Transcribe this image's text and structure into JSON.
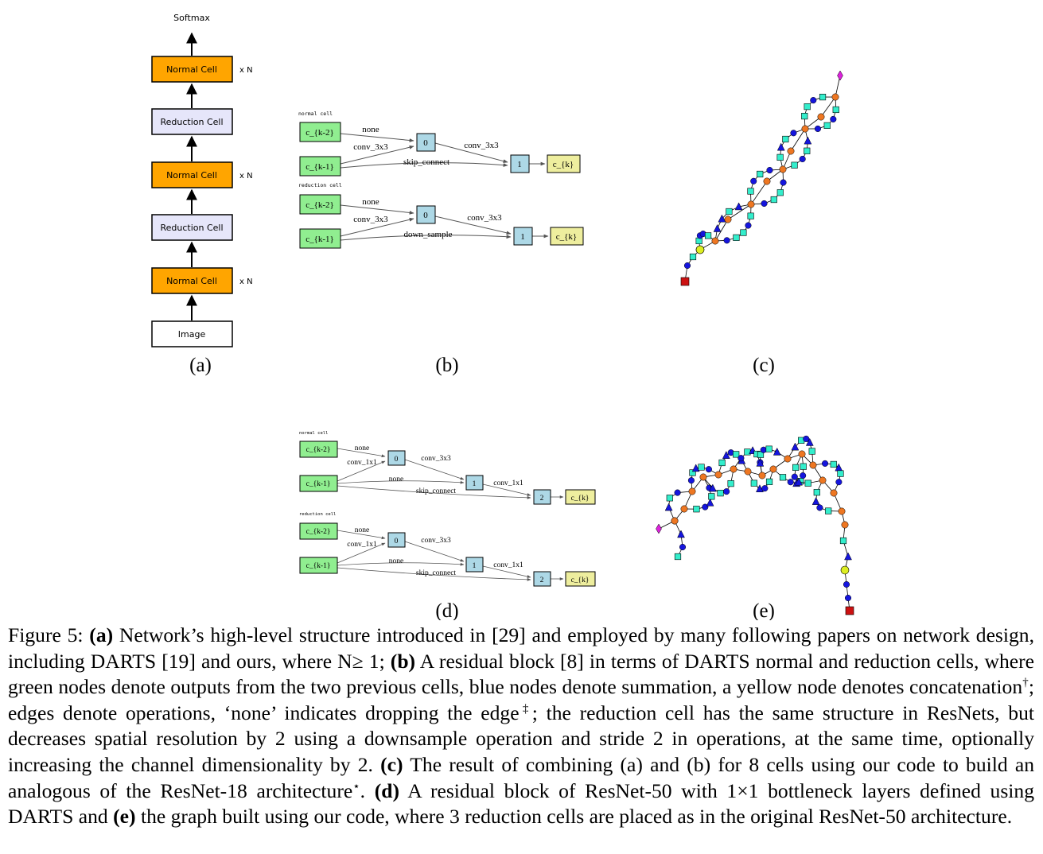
{
  "panel_a": {
    "softmax": "Softmax",
    "normal_cell": "Normal Cell",
    "reduction_cell": "Reduction Cell",
    "image": "Image",
    "repeat": "x N",
    "label": "(a)"
  },
  "panel_b": {
    "normal_title": "normal cell",
    "reduction_title": "reduction cell",
    "ck2": "c_{k-2}",
    "ck1": "c_{k-1}",
    "ck": "c_{k}",
    "n0": "0",
    "n1": "1",
    "none": "none",
    "conv3x3": "conv_3x3",
    "skip": "skip_connect",
    "down": "down_sample",
    "label": "(b)"
  },
  "panel_c": {
    "label": "(c)"
  },
  "panel_d": {
    "normal_title": "normal cell",
    "reduction_title": "reduction cell",
    "ck2": "c_{k-2}",
    "ck1": "c_{k-1}",
    "ck": "c_{k}",
    "n0": "0",
    "n1": "1",
    "n2": "2",
    "none": "none",
    "conv1x1": "conv_1x1",
    "conv3x3": "conv_3x3",
    "skip": "skip_connect",
    "label": "(d)"
  },
  "panel_e": {
    "label": "(e)"
  },
  "colors": {
    "orange": "#ffa500",
    "lavender": "#e6e6fa",
    "green": "#90ee90",
    "lightblue": "#add8e6",
    "yellow": "#eeee9e",
    "graph_orange": "#ee7722",
    "graph_blue": "#1515dd",
    "graph_teal": "#33eecc",
    "graph_red": "#cc1111",
    "graph_magenta": "#dd22dd",
    "graph_yellow": "#ddee22"
  },
  "caption": {
    "fig_label": "Figure 5:",
    "a_tag": "(a)",
    "a_text": "Network’s high-level structure introduced in [29] and employed by many following papers on network design, including DARTS [19] and ours, where N≥ 1;",
    "b_tag": "(b)",
    "b_text": "A residual block [8] in terms of DARTS normal and reduction cells, where green nodes denote outputs from the two previous cells, blue nodes denote summation, a yellow node denotes concatenation",
    "dagger": "†",
    "b_text2": "; edges denote operations, ‘none’ indicates dropping the edge",
    "ddagger": "‡",
    "b_text3": "; the reduction cell has the same structure in ResNets, but decreases spatial resolution by 2 using a downsample operation and stride 2 in operations, at the same time, optionally increasing the channel dimensionality by 2.",
    "c_tag": "(c)",
    "c_text": "The result of combining (a) and (b) for 8 cells using our code to build an analogous of the ResNet-18 architecture",
    "star": "⋆",
    "c_end": ".",
    "d_tag": "(d)",
    "d_text": "A residual block of ResNet-50 with 1×1 bottleneck layers defined using DARTS and",
    "e_tag": "(e)",
    "e_text": "the graph built using our code, where 3 reduction cells are placed as in the original ResNet-50 architecture."
  }
}
